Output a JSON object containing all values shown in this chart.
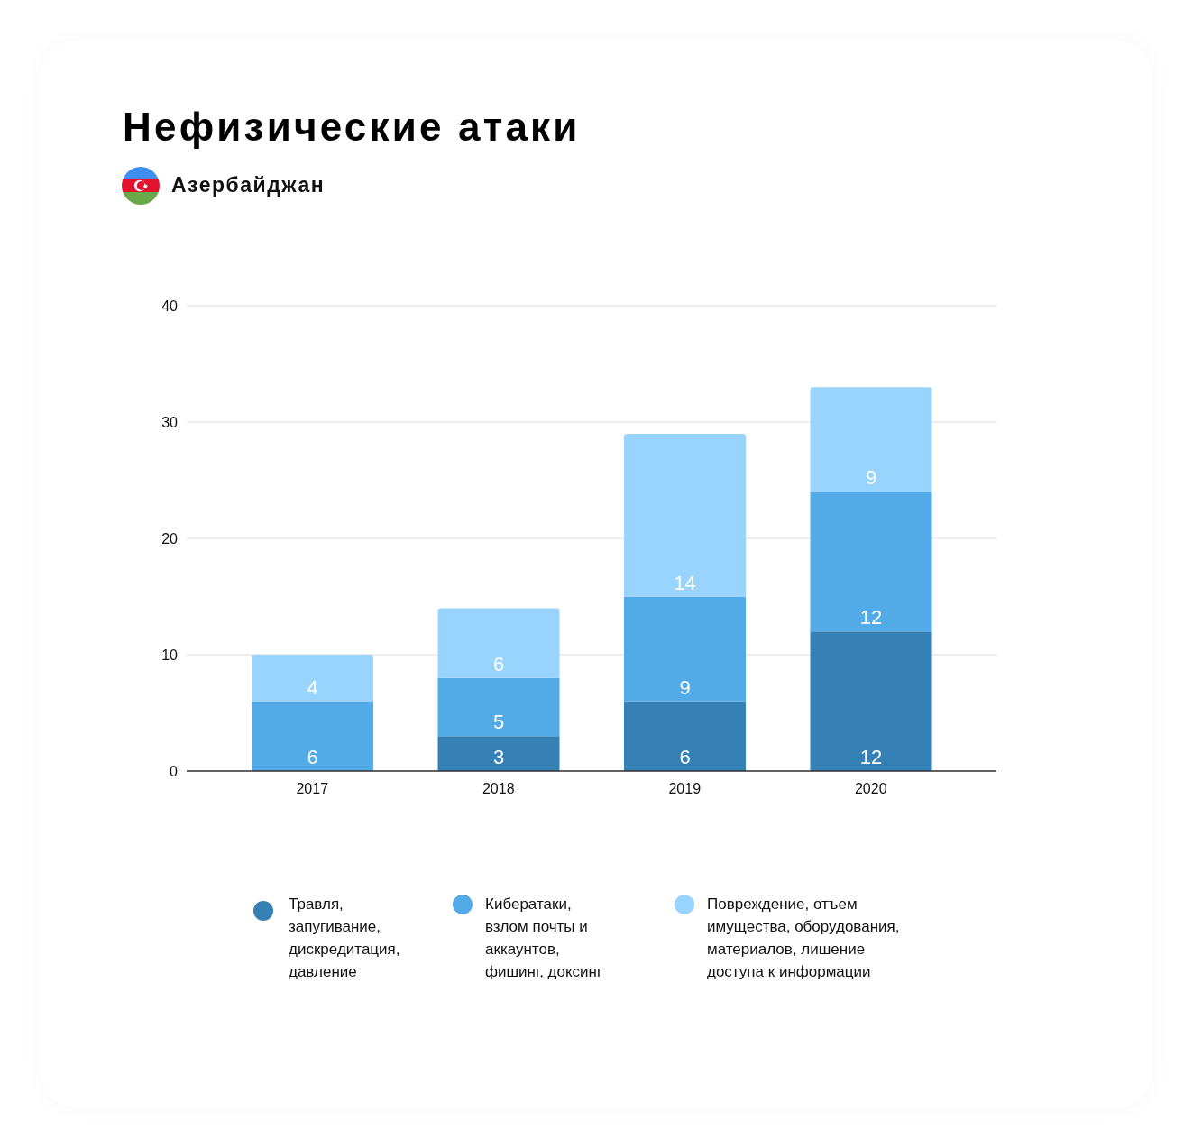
{
  "chart_data": {
    "type": "bar",
    "title": "Нефизические атаки",
    "subtitle": "Азербайджан",
    "categories": [
      "2017",
      "2018",
      "2019",
      "2020"
    ],
    "series": [
      {
        "name": "Травля, запугивание, дискредитация, давление",
        "color": "#3580b5",
        "values": [
          0,
          3,
          6,
          12
        ],
        "value_labels": [
          null,
          "3",
          "6",
          "12"
        ]
      },
      {
        "name": "Кибератаки, взлом почты и аккаунтов, фишинг, доксинг",
        "color": "#52aae6",
        "values": [
          6,
          5,
          9,
          12
        ],
        "value_labels": [
          "6",
          "5",
          "9",
          "12"
        ]
      },
      {
        "name": "Повреждение, отъем имущества, оборудования, материалов, лишение доступа к информации",
        "color": "#99d4fe",
        "values": [
          4,
          6,
          14,
          9
        ],
        "value_labels": [
          "4",
          "6",
          "14",
          "9"
        ]
      }
    ],
    "stacked": true,
    "ylim": [
      0,
      40
    ],
    "yticks": [
      0,
      10,
      20,
      30,
      40
    ],
    "grid": "y",
    "legend": "bottom"
  }
}
